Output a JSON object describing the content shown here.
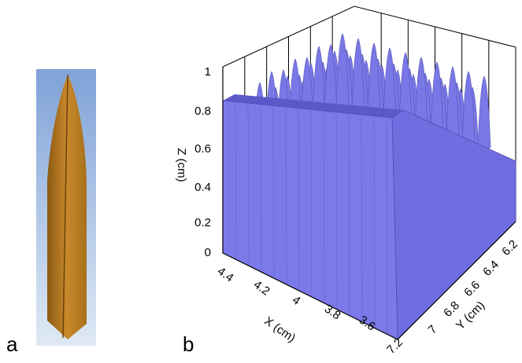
{
  "panels": [
    {
      "label": "a"
    },
    {
      "label": "b",
      "z_axis": {
        "title": "Z (cm)",
        "ticks": [
          "0",
          "0.2",
          "0.4",
          "0.6",
          "0.8",
          "1"
        ]
      },
      "x_axis": {
        "title": "X (cm)",
        "ticks": [
          "4.4",
          "4.2",
          "4",
          "3.8",
          "3.6"
        ]
      },
      "y_axis": {
        "title": "Y (cm)",
        "ticks": [
          "7.2",
          "7",
          "6.8",
          "6.6",
          "6.4",
          "6.2"
        ]
      }
    }
  ]
}
